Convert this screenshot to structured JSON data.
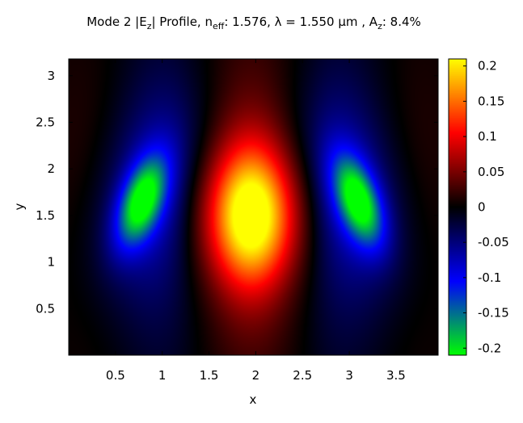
{
  "chart_data": {
    "type": "heatmap",
    "title_parts": {
      "a": "Mode 2 |E",
      "a_sub": "z",
      "b": "| Profile, n",
      "b_sub": "eff",
      "c": ": 1.576, λ = 1.550 µm , A",
      "c_sub": "z",
      "d": ": 8.4%"
    },
    "xlabel": "x",
    "ylabel": "y",
    "xlim": [
      0.0,
      3.95
    ],
    "ylim": [
      0.0,
      3.18
    ],
    "xticks": [
      0.5,
      1,
      1.5,
      2,
      2.5,
      3,
      3.5
    ],
    "xtick_labels": [
      "0.5",
      "1",
      "1.5",
      "2",
      "2.5",
      "3",
      "3.5"
    ],
    "yticks": [
      0.5,
      1,
      1.5,
      2,
      2.5,
      3
    ],
    "ytick_labels": [
      "0.5",
      "1",
      "1.5",
      "2",
      "2.5",
      "3"
    ],
    "colorbar": {
      "range": [
        -0.21,
        0.21
      ],
      "ticks": [
        0.2,
        0.15,
        0.1,
        0.05,
        0,
        -0.05,
        -0.1,
        -0.15,
        -0.2
      ],
      "tick_labels": [
        "0.2",
        "0.15",
        "0.1",
        "0.05",
        "0",
        "-0.05",
        "-0.1",
        "-0.15",
        "-0.2"
      ],
      "colormap": [
        {
          "v": -0.21,
          "color": "#00ff00"
        },
        {
          "v": -0.105,
          "color": "#0000ff"
        },
        {
          "v": 0.0,
          "color": "#000000"
        },
        {
          "v": 0.105,
          "color": "#ff0000"
        },
        {
          "v": 0.21,
          "color": "#ffff00"
        }
      ]
    },
    "features": [
      {
        "kind": "central_lobe",
        "x": 1.95,
        "y": 1.5,
        "peak_value": 0.205,
        "sigma_x": 0.38,
        "sigma_y": 0.5
      },
      {
        "kind": "left_lobe",
        "x": 0.78,
        "y": 1.65,
        "peak_value": -0.17,
        "tilt": "leans right toward top"
      },
      {
        "kind": "right_lobe",
        "x": 3.1,
        "y": 1.65,
        "peak_value": -0.17,
        "tilt": "leans left toward top"
      }
    ]
  }
}
